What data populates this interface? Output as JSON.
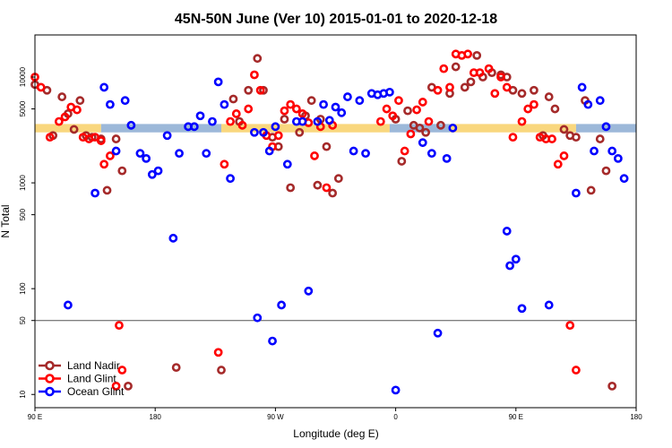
{
  "chart_data": {
    "type": "scatter",
    "title": "45N-50N June (Ver 10)   2015-01-01 to 2020-12-18",
    "xlabel": "Longitude (deg E)",
    "ylabel": "N Total",
    "y_scale": "log",
    "x_ticks": [
      "90 E",
      "180",
      "90 W",
      "0",
      "90 E",
      "180"
    ],
    "y_ticks": [
      "10",
      "50",
      "100",
      "500",
      "1000",
      "5000",
      "10000"
    ],
    "y_tick_values": [
      10,
      50,
      100,
      500,
      1000,
      5000,
      10000
    ],
    "reference_line": 50,
    "legend_position": "bottom-left",
    "colors": {
      "land_nadir": "#a52a2a",
      "land_glint": "#ff0000",
      "ocean_glint": "#0000ff",
      "band_yellow": "#f9d77e",
      "band_blue": "#9cb8d9"
    },
    "series": [
      {
        "name": "Land Nadir",
        "color": "#a52a2a",
        "points": [
          [
            0,
            8500
          ],
          [
            4,
            7500
          ],
          [
            6,
            2800
          ],
          [
            9,
            6500
          ],
          [
            11,
            4500
          ],
          [
            13,
            3200
          ],
          [
            15,
            6000
          ],
          [
            17,
            2800
          ],
          [
            19,
            2700
          ],
          [
            22,
            2600
          ],
          [
            24,
            850
          ],
          [
            27,
            2600
          ],
          [
            29,
            1300
          ],
          [
            31,
            12
          ],
          [
            47,
            18
          ],
          [
            62,
            17
          ],
          [
            66,
            6200
          ],
          [
            68,
            3800
          ],
          [
            71,
            7500
          ],
          [
            74,
            15000
          ],
          [
            76,
            7500
          ],
          [
            79,
            2700
          ],
          [
            81,
            2200
          ],
          [
            83,
            4000
          ],
          [
            85,
            900
          ],
          [
            88,
            3000
          ],
          [
            90,
            4300
          ],
          [
            92,
            6000
          ],
          [
            94,
            950
          ],
          [
            95,
            4000
          ],
          [
            97,
            2200
          ],
          [
            99,
            800
          ],
          [
            101,
            1100
          ],
          [
            120,
            4000
          ],
          [
            122,
            1600
          ],
          [
            124,
            4800
          ],
          [
            126,
            3500
          ],
          [
            128,
            3300
          ],
          [
            130,
            3000
          ],
          [
            132,
            8000
          ],
          [
            135,
            3500
          ],
          [
            138,
            7000
          ],
          [
            140,
            12500
          ],
          [
            143,
            8000
          ],
          [
            145,
            9000
          ],
          [
            147,
            16000
          ],
          [
            149,
            10000
          ],
          [
            152,
            11000
          ],
          [
            155,
            10500
          ],
          [
            157,
            10000
          ],
          [
            159,
            7500
          ],
          [
            162,
            7000
          ],
          [
            166,
            7500
          ],
          [
            169,
            2800
          ],
          [
            171,
            6500
          ],
          [
            173,
            5000
          ],
          [
            176,
            3200
          ],
          [
            178,
            2800
          ],
          [
            180,
            2700
          ],
          [
            183,
            6000
          ],
          [
            185,
            850
          ],
          [
            188,
            2600
          ],
          [
            190,
            1300
          ],
          [
            192,
            12
          ]
        ]
      },
      {
        "name": "Land Glint",
        "color": "#ff0000",
        "points": [
          [
            0,
            10000
          ],
          [
            2,
            8000
          ],
          [
            5,
            2700
          ],
          [
            8,
            3800
          ],
          [
            10,
            4200
          ],
          [
            12,
            5200
          ],
          [
            14,
            4900
          ],
          [
            16,
            2700
          ],
          [
            18,
            2600
          ],
          [
            20,
            2700
          ],
          [
            22,
            2500
          ],
          [
            23,
            1500
          ],
          [
            25,
            1800
          ],
          [
            27,
            12
          ],
          [
            28,
            45
          ],
          [
            29,
            17
          ],
          [
            61,
            25
          ],
          [
            63,
            1500
          ],
          [
            65,
            3800
          ],
          [
            67,
            4500
          ],
          [
            69,
            3500
          ],
          [
            71,
            5000
          ],
          [
            73,
            10500
          ],
          [
            75,
            7500
          ],
          [
            77,
            2800
          ],
          [
            79,
            2200
          ],
          [
            81,
            2800
          ],
          [
            83,
            4800
          ],
          [
            85,
            5500
          ],
          [
            87,
            5000
          ],
          [
            89,
            4500
          ],
          [
            91,
            3700
          ],
          [
            93,
            1800
          ],
          [
            95,
            3400
          ],
          [
            97,
            900
          ],
          [
            99,
            3500
          ],
          [
            115,
            3800
          ],
          [
            117,
            5000
          ],
          [
            119,
            4300
          ],
          [
            121,
            6000
          ],
          [
            123,
            2000
          ],
          [
            125,
            2900
          ],
          [
            127,
            4900
          ],
          [
            129,
            5800
          ],
          [
            131,
            3800
          ],
          [
            134,
            7500
          ],
          [
            136,
            12000
          ],
          [
            138,
            8000
          ],
          [
            140,
            16500
          ],
          [
            142,
            16000
          ],
          [
            144,
            16500
          ],
          [
            146,
            11000
          ],
          [
            148,
            11000
          ],
          [
            151,
            12000
          ],
          [
            153,
            7000
          ],
          [
            155,
            10000
          ],
          [
            157,
            8000
          ],
          [
            159,
            2700
          ],
          [
            162,
            3800
          ],
          [
            164,
            5000
          ],
          [
            166,
            5500
          ],
          [
            168,
            2700
          ],
          [
            170,
            2600
          ],
          [
            172,
            2600
          ],
          [
            174,
            1500
          ],
          [
            176,
            1800
          ],
          [
            178,
            45
          ],
          [
            180,
            17
          ]
        ]
      },
      {
        "name": "Ocean Glint",
        "color": "#0000ff",
        "points": [
          [
            11,
            70
          ],
          [
            20,
            800
          ],
          [
            23,
            8000
          ],
          [
            25,
            5500
          ],
          [
            27,
            2000
          ],
          [
            30,
            6000
          ],
          [
            32,
            3500
          ],
          [
            35,
            1900
          ],
          [
            37,
            1700
          ],
          [
            39,
            1200
          ],
          [
            41,
            1300
          ],
          [
            44,
            2800
          ],
          [
            46,
            300
          ],
          [
            48,
            1900
          ],
          [
            51,
            3400
          ],
          [
            53,
            3400
          ],
          [
            55,
            4300
          ],
          [
            57,
            1900
          ],
          [
            59,
            3800
          ],
          [
            61,
            9000
          ],
          [
            63,
            5500
          ],
          [
            65,
            1100
          ],
          [
            73,
            3000
          ],
          [
            74,
            53
          ],
          [
            76,
            3000
          ],
          [
            78,
            2000
          ],
          [
            79,
            32
          ],
          [
            80,
            3400
          ],
          [
            82,
            70
          ],
          [
            84,
            1500
          ],
          [
            87,
            3800
          ],
          [
            89,
            3800
          ],
          [
            91,
            95
          ],
          [
            94,
            3800
          ],
          [
            96,
            5500
          ],
          [
            98,
            3900
          ],
          [
            100,
            5200
          ],
          [
            102,
            4600
          ],
          [
            104,
            6500
          ],
          [
            106,
            2000
          ],
          [
            108,
            6000
          ],
          [
            110,
            1900
          ],
          [
            112,
            7000
          ],
          [
            114,
            6800
          ],
          [
            116,
            7000
          ],
          [
            118,
            7200
          ],
          [
            120,
            11
          ],
          [
            129,
            2400
          ],
          [
            132,
            1900
          ],
          [
            134,
            38
          ],
          [
            137,
            1700
          ],
          [
            139,
            3300
          ],
          [
            157,
            350
          ],
          [
            158,
            165
          ],
          [
            160,
            190
          ],
          [
            162,
            65
          ],
          [
            171,
            70
          ],
          [
            180,
            800
          ],
          [
            182,
            8000
          ],
          [
            184,
            5500
          ],
          [
            186,
            2000
          ],
          [
            188,
            6000
          ],
          [
            190,
            3400
          ],
          [
            192,
            2000
          ],
          [
            194,
            1700
          ],
          [
            196,
            1100
          ]
        ]
      }
    ],
    "band": {
      "value_low": 3000,
      "value_high": 3600,
      "segments": [
        {
          "from": 0,
          "to": 22,
          "color": "#f9d77e"
        },
        {
          "from": 22,
          "to": 62,
          "color": "#9cb8d9"
        },
        {
          "from": 62,
          "to": 118,
          "color": "#f9d77e"
        },
        {
          "from": 118,
          "to": 138,
          "color": "#9cb8d9"
        },
        {
          "from": 138,
          "to": 180,
          "color": "#f9d77e"
        },
        {
          "from": 180,
          "to": 200,
          "color": "#9cb8d9"
        }
      ]
    }
  }
}
